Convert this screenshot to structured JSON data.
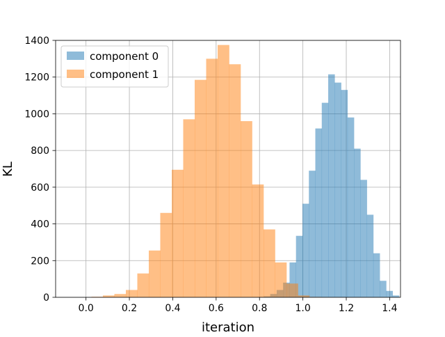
{
  "chart_data": {
    "type": "histogram",
    "xlabel": "iteration",
    "ylabel": "KL",
    "xlim": [
      -0.14,
      1.45
    ],
    "ylim": [
      0,
      1400
    ],
    "grid": true,
    "legend_position": "top-left",
    "xticks": [
      0.0,
      0.2,
      0.4,
      0.6,
      0.8,
      1.0,
      1.2,
      1.4
    ],
    "xtick_labels": [
      "0.0",
      "0.2",
      "0.4",
      "0.6",
      "0.8",
      "1.0",
      "1.2",
      "1.4"
    ],
    "yticks": [
      0,
      200,
      400,
      600,
      800,
      1000,
      1200,
      1400
    ],
    "ytick_labels": [
      "0",
      "200",
      "400",
      "600",
      "800",
      "1000",
      "1200",
      "1400"
    ],
    "series": [
      {
        "name": "component 0",
        "color": "#1f77b4",
        "opacity": 0.5,
        "bin_start": 0.79,
        "bin_width": 0.0297,
        "counts": [
          2,
          5,
          18,
          40,
          80,
          190,
          335,
          510,
          690,
          920,
          1060,
          1215,
          1170,
          1130,
          980,
          810,
          640,
          450,
          240,
          90,
          35,
          10
        ]
      },
      {
        "name": "component 1",
        "color": "#ff7f0e",
        "opacity": 0.5,
        "bin_start": 0.025,
        "bin_width": 0.0529,
        "counts": [
          3,
          10,
          18,
          40,
          130,
          255,
          460,
          695,
          970,
          1185,
          1300,
          1375,
          1270,
          960,
          615,
          370,
          190,
          75,
          10,
          2
        ]
      }
    ]
  }
}
